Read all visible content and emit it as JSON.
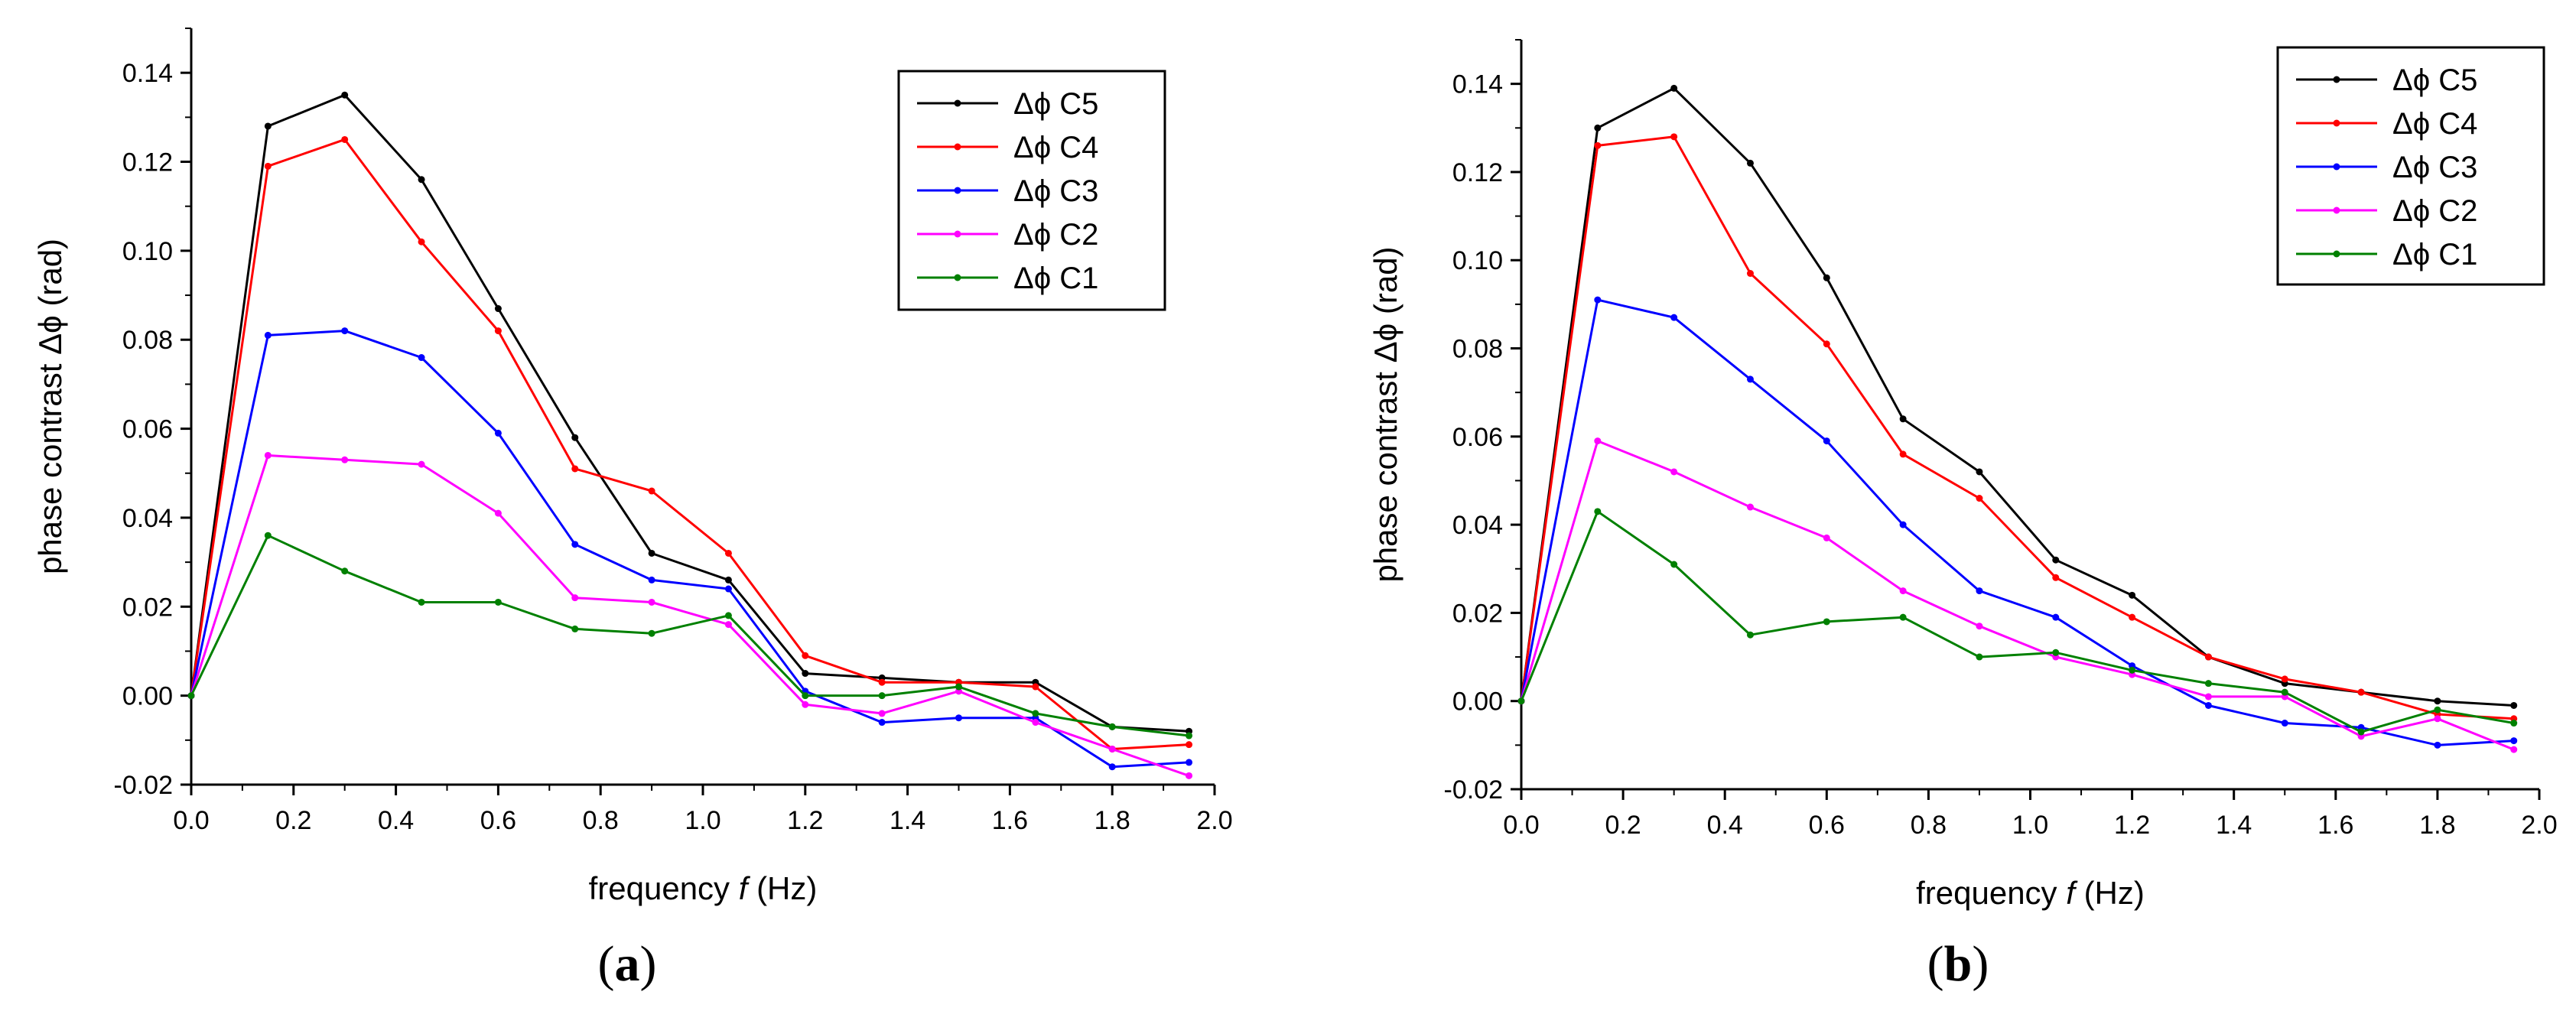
{
  "figure_captions": [
    "(a)",
    "(b)"
  ],
  "chart_data": [
    {
      "type": "line",
      "panel": "(a)",
      "panel_letter": "a",
      "xlabel_prefix": "frequency ",
      "xlabel_var": "f",
      "xlabel_suffix": " (Hz)",
      "ylabel": "phase contrast Δϕ (rad)",
      "xlim": [
        0.0,
        2.0
      ],
      "ylim": [
        -0.02,
        0.15
      ],
      "xticks": [
        "0.0",
        "0.2",
        "0.4",
        "0.6",
        "0.8",
        "1.0",
        "1.2",
        "1.4",
        "1.6",
        "1.8",
        "2.0"
      ],
      "yticks": [
        "-0.02",
        "0.00",
        "0.02",
        "0.04",
        "0.06",
        "0.08",
        "0.10",
        "0.12",
        "0.14"
      ],
      "legend_position": "top-right",
      "x": [
        0.0,
        0.15,
        0.3,
        0.45,
        0.6,
        0.75,
        0.9,
        1.05,
        1.2,
        1.35,
        1.5,
        1.65,
        1.8,
        1.95
      ],
      "series": [
        {
          "name": "Δϕ C5",
          "color": "#000000",
          "values": [
            0.0,
            0.128,
            0.135,
            0.116,
            0.087,
            0.058,
            0.032,
            0.026,
            0.005,
            0.004,
            0.003,
            0.003,
            -0.007,
            -0.008
          ]
        },
        {
          "name": "Δϕ C4",
          "color": "#ff0000",
          "values": [
            0.0,
            0.119,
            0.125,
            0.102,
            0.082,
            0.051,
            0.046,
            0.032,
            0.009,
            0.003,
            0.003,
            0.002,
            -0.012,
            -0.011
          ]
        },
        {
          "name": "Δϕ C3",
          "color": "#0000ff",
          "values": [
            0.0,
            0.081,
            0.082,
            0.076,
            0.059,
            0.034,
            0.026,
            0.024,
            0.001,
            -0.006,
            -0.005,
            -0.005,
            -0.016,
            -0.015
          ]
        },
        {
          "name": "Δϕ C2",
          "color": "#ff00ff",
          "values": [
            0.0,
            0.054,
            0.053,
            0.052,
            0.041,
            0.022,
            0.021,
            0.016,
            -0.002,
            -0.004,
            0.001,
            -0.006,
            -0.012,
            -0.018
          ]
        },
        {
          "name": "Δϕ C1",
          "color": "#008000",
          "values": [
            0.0,
            0.036,
            0.028,
            0.021,
            0.021,
            0.015,
            0.014,
            0.018,
            0.0,
            0.0,
            0.002,
            -0.004,
            -0.007,
            -0.009
          ]
        }
      ]
    },
    {
      "type": "line",
      "panel": "(b)",
      "panel_letter": "b",
      "xlabel_prefix": "frequency ",
      "xlabel_var": "f",
      "xlabel_suffix": " (Hz)",
      "ylabel": "phase contrast Δϕ (rad)",
      "xlim": [
        0.0,
        2.0
      ],
      "ylim": [
        -0.02,
        0.15
      ],
      "xticks": [
        "0.0",
        "0.2",
        "0.4",
        "0.6",
        "0.8",
        "1.0",
        "1.2",
        "1.4",
        "1.6",
        "1.8",
        "2.0"
      ],
      "yticks": [
        "-0.02",
        "0.00",
        "0.02",
        "0.04",
        "0.06",
        "0.08",
        "0.10",
        "0.12",
        "0.14"
      ],
      "legend_position": "top-right",
      "x": [
        0.0,
        0.15,
        0.3,
        0.45,
        0.6,
        0.75,
        0.9,
        1.05,
        1.2,
        1.35,
        1.5,
        1.65,
        1.8,
        1.95
      ],
      "series": [
        {
          "name": "Δϕ C5",
          "color": "#000000",
          "values": [
            0.0,
            0.13,
            0.139,
            0.122,
            0.096,
            0.064,
            0.052,
            0.032,
            0.024,
            0.01,
            0.004,
            0.002,
            0.0,
            -0.001
          ]
        },
        {
          "name": "Δϕ C4",
          "color": "#ff0000",
          "values": [
            0.0,
            0.126,
            0.128,
            0.097,
            0.081,
            0.056,
            0.046,
            0.028,
            0.019,
            0.01,
            0.005,
            0.002,
            -0.003,
            -0.004
          ]
        },
        {
          "name": "Δϕ C3",
          "color": "#0000ff",
          "values": [
            0.0,
            0.091,
            0.087,
            0.073,
            0.059,
            0.04,
            0.025,
            0.019,
            0.008,
            -0.001,
            -0.005,
            -0.006,
            -0.01,
            -0.009
          ]
        },
        {
          "name": "Δϕ C2",
          "color": "#ff00ff",
          "values": [
            0.0,
            0.059,
            0.052,
            0.044,
            0.037,
            0.025,
            0.017,
            0.01,
            0.006,
            0.001,
            0.001,
            -0.008,
            -0.004,
            -0.011
          ]
        },
        {
          "name": "Δϕ C1",
          "color": "#008000",
          "values": [
            0.0,
            0.043,
            0.031,
            0.015,
            0.018,
            0.019,
            0.01,
            0.011,
            0.007,
            0.004,
            0.002,
            -0.007,
            -0.002,
            -0.005
          ]
        }
      ]
    }
  ]
}
